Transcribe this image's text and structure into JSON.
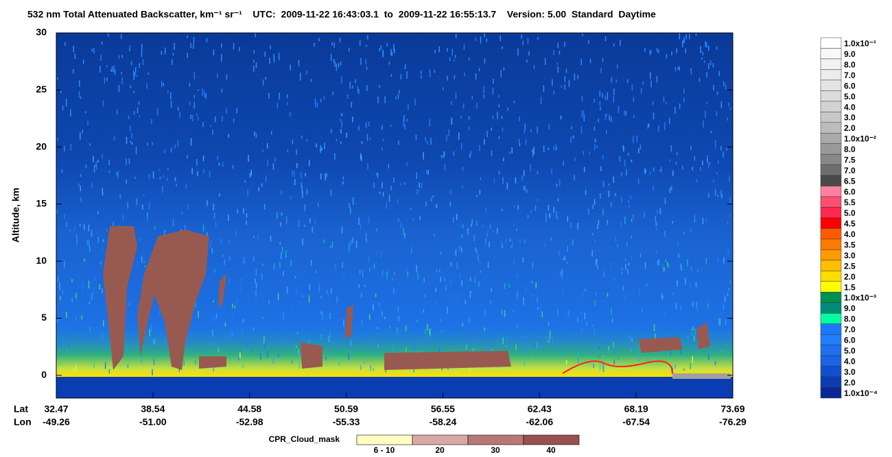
{
  "chart_data": {
    "type": "curtain",
    "title": "532 nm Total Attenuated Backscatter, km⁻¹ sr⁻¹    UTC:  2009-11-22 16:43:03.1  to  2009-11-22 16:55:13.7    Version: 5.00  Standard  Daytime",
    "y_label": "Altitude, km",
    "ylim": [
      -2,
      30
    ],
    "yticks": [
      0,
      5,
      10,
      15,
      20,
      25,
      30
    ],
    "lat_label": "Lat",
    "lon_label": "Lon",
    "lat": [
      "32.47",
      "38.54",
      "44.58",
      "50.59",
      "56.55",
      "62.43",
      "68.19",
      "73.69"
    ],
    "lon": [
      "-49.26",
      "-51.00",
      "-52.98",
      "-55.33",
      "-58.24",
      "-62.06",
      "-67.54",
      "-76.29"
    ],
    "colorbar": {
      "labels": [
        "1.0x10⁻¹",
        "9.0",
        "8.0",
        "7.0",
        "6.0",
        "5.0",
        "4.0",
        "3.0",
        "2.0",
        "1.0x10⁻²",
        "8.0",
        "7.5",
        "7.0",
        "6.5",
        "6.0",
        "5.5",
        "5.0",
        "4.5",
        "4.0",
        "3.5",
        "3.0",
        "2.5",
        "2.0",
        "1.5",
        "1.0x10⁻³",
        "9.0",
        "8.0",
        "7.0",
        "6.0",
        "5.0",
        "4.0",
        "3.0",
        "2.0",
        "1.0x10⁻⁴"
      ],
      "colors": [
        "#ffffff",
        "#f8f8f8",
        "#f2f2f2",
        "#ececec",
        "#e4e4e4",
        "#dcdcdc",
        "#d2d2d2",
        "#c8c8c8",
        "#bcbcbc",
        "#aaaaaa",
        "#999999",
        "#888888",
        "#6e6e6e",
        "#4a4a4a",
        "#ff7fa0",
        "#ff5070",
        "#ff2850",
        "#ff0000",
        "#ff5a00",
        "#ff7a00",
        "#ff9a00",
        "#ffbe00",
        "#ffdd00",
        "#ffff00",
        "#009050",
        "#008c78",
        "#00ffa0",
        "#1e78ff",
        "#2080ff",
        "#1e70f0",
        "#1a64e6",
        "#1050d0",
        "#0a3cb4",
        "#082896"
      ]
    },
    "cpr_legend": {
      "title": "CPR_Cloud_mask",
      "labels": [
        "6 - 10",
        "20",
        "30",
        "40"
      ],
      "colors": [
        "#ffffc0",
        "#d8a8a8",
        "#b87878",
        "#985050"
      ]
    }
  }
}
